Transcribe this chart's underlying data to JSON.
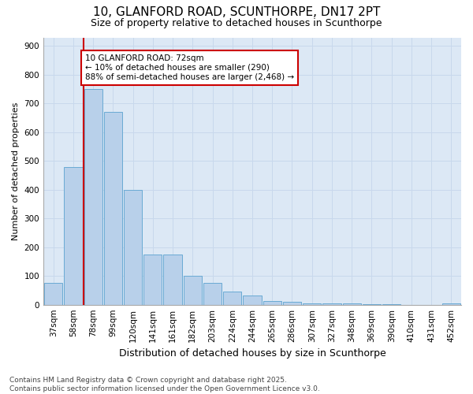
{
  "title_line1": "10, GLANFORD ROAD, SCUNTHORPE, DN17 2PT",
  "title_line2": "Size of property relative to detached houses in Scunthorpe",
  "xlabel": "Distribution of detached houses by size in Scunthorpe",
  "ylabel": "Number of detached properties",
  "categories": [
    "37sqm",
    "58sqm",
    "78sqm",
    "99sqm",
    "120sqm",
    "141sqm",
    "161sqm",
    "182sqm",
    "203sqm",
    "224sqm",
    "244sqm",
    "265sqm",
    "286sqm",
    "307sqm",
    "327sqm",
    "348sqm",
    "369sqm",
    "390sqm",
    "410sqm",
    "431sqm",
    "452sqm"
  ],
  "values": [
    75,
    480,
    750,
    670,
    400,
    175,
    175,
    100,
    75,
    45,
    32,
    12,
    10,
    5,
    5,
    4,
    3,
    2,
    0,
    0,
    5
  ],
  "bar_color": "#b8d0ea",
  "bar_edge_color": "#6aaad4",
  "grid_color": "#c8d8ec",
  "background_color": "#dce8f5",
  "red_line_x": 1.5,
  "annotation_text": "10 GLANFORD ROAD: 72sqm\n← 10% of detached houses are smaller (290)\n88% of semi-detached houses are larger (2,468) →",
  "annotation_box_facecolor": "#ffffff",
  "annotation_box_edgecolor": "#cc0000",
  "red_line_color": "#cc0000",
  "ylim_max": 930,
  "yticks": [
    0,
    100,
    200,
    300,
    400,
    500,
    600,
    700,
    800,
    900
  ],
  "footer_line1": "Contains HM Land Registry data © Crown copyright and database right 2025.",
  "footer_line2": "Contains public sector information licensed under the Open Government Licence v3.0.",
  "title_fontsize": 11,
  "subtitle_fontsize": 9,
  "ylabel_fontsize": 8,
  "xlabel_fontsize": 9,
  "tick_fontsize": 7.5,
  "annot_fontsize": 7.5,
  "footer_fontsize": 6.5
}
